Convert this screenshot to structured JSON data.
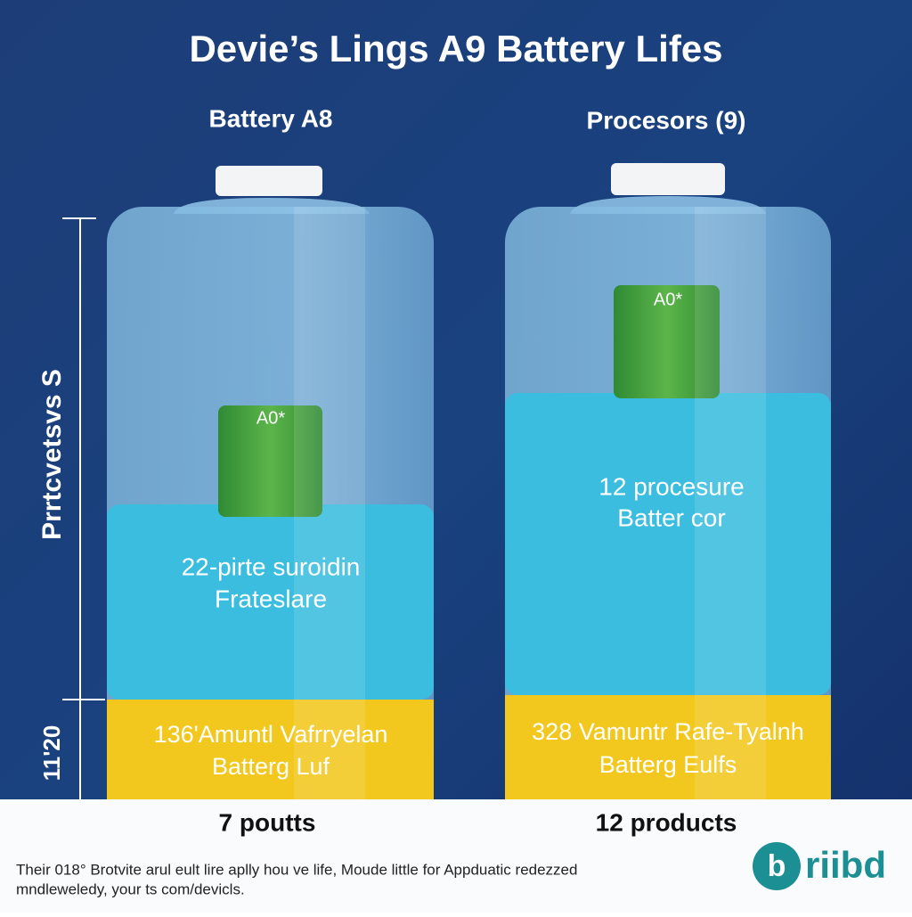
{
  "title": "Devie’s Lings A9 Battery Lifes",
  "axis": {
    "label": "Prrtcvetsvs S",
    "bottom_label": "11'20"
  },
  "columns": [
    {
      "header": "Battery A8",
      "cell_label": "A0*",
      "middle_text": [
        "22-pirte suroidin",
        "Frateslare"
      ],
      "bottom_text": [
        "136'Amuntl Vafrryelan",
        "Batterg Luf"
      ],
      "footer": "7 poutts"
    },
    {
      "header": "Procesors (9)",
      "cell_label": "A0*",
      "middle_text": [
        "12 procesure",
        "Batter cor"
      ],
      "bottom_text": [
        "328 Vamuntr Rafe-Tyalnh",
        "Batterg Eulfs"
      ],
      "footer": "12 products"
    }
  ],
  "footnote": [
    "Their 018° Brotvite arul eult lire aplly hou ve life, Moude little for Appduatic redezzed",
    "mndleweledy, your ts com/devicls."
  ],
  "logo": {
    "icon": "b",
    "text": "riibd"
  }
}
